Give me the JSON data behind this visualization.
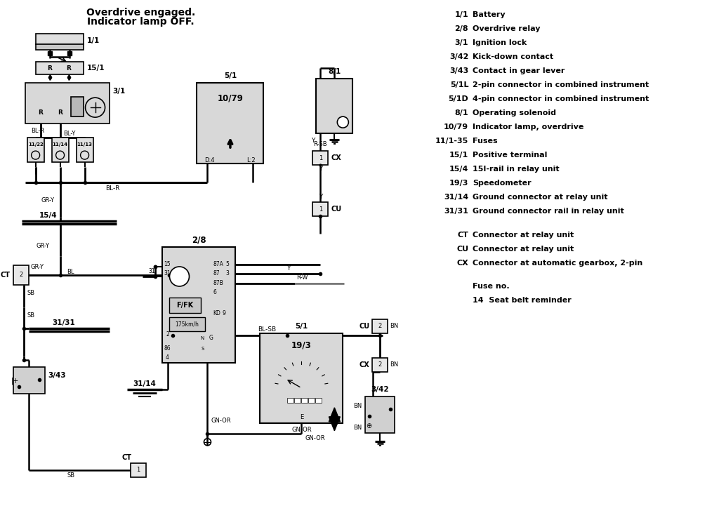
{
  "title_line1": "Overdrive engaged.",
  "title_line2": "Indicator lamp OFF.",
  "bg_color": "#ffffff",
  "legend_entries": [
    [
      "1/1",
      "Battery"
    ],
    [
      "2/8",
      "Overdrive relay"
    ],
    [
      "3/1",
      "Ignition lock"
    ],
    [
      "3/42",
      "Kick-down contact"
    ],
    [
      "3/43",
      "Contact in gear lever"
    ],
    [
      "5/1L",
      "2-pin connector in combined instrument"
    ],
    [
      "5/1D",
      "4-pin connector in combined instrument"
    ],
    [
      "8/1",
      "Operating solenoid"
    ],
    [
      "10/79",
      "Indicator lamp, overdrive"
    ],
    [
      "11/1-35",
      "Fuses"
    ],
    [
      "15/1",
      "Positive terminal"
    ],
    [
      "15/4",
      "15I-rail in relay unit"
    ],
    [
      "19/3",
      "Speedometer"
    ],
    [
      "31/14",
      "Ground connector at relay unit"
    ],
    [
      "31/31",
      "Ground connector rail in relay unit"
    ]
  ],
  "connector_entries": [
    [
      "CT",
      "Connector at relay unit"
    ],
    [
      "CU",
      "Connector at relay unit"
    ],
    [
      "CX",
      "Connector at automatic gearbox, 2-pin"
    ]
  ],
  "fuse_note": "Fuse no.",
  "fuse_detail": "14  Seat belt reminder"
}
